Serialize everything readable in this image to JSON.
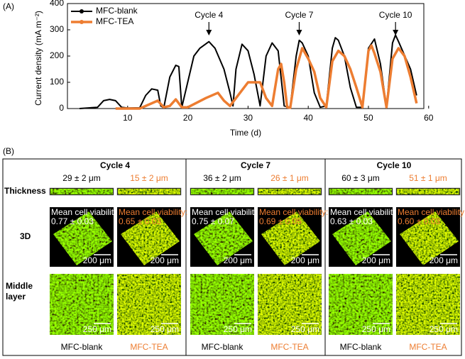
{
  "chart_data": {
    "type": "line",
    "panel_label": "(A)",
    "xlabel": "Time (d)",
    "ylabel": "Current density (mA m⁻²)",
    "xlim": [
      0,
      59.2
    ],
    "xticks": [
      10,
      20,
      30,
      40,
      50,
      60
    ],
    "ylim": [
      0,
      400
    ],
    "yticks": [
      0,
      100,
      200,
      300,
      400
    ],
    "legend": "upper left",
    "series": [
      {
        "name": "MFC-blank",
        "color": "#000000",
        "x": [
          2,
          5,
          6,
          7,
          8,
          9,
          10,
          12,
          13,
          14,
          15,
          15.5,
          16,
          17,
          18,
          18.5,
          19,
          21,
          22,
          23.5,
          24.5,
          26,
          27,
          27.5,
          28,
          29,
          30,
          31,
          32,
          33,
          34,
          35,
          36,
          37,
          38,
          38.5,
          39,
          40,
          41,
          42,
          43,
          44,
          44.5,
          45,
          46,
          47,
          48,
          49,
          50,
          51,
          52,
          53,
          54,
          54.5,
          55,
          57,
          58
        ],
        "values": [
          0,
          5,
          30,
          35,
          30,
          5,
          2,
          3,
          50,
          75,
          70,
          10,
          3,
          120,
          165,
          160,
          5,
          200,
          230,
          255,
          230,
          150,
          60,
          10,
          150,
          245,
          220,
          130,
          10,
          200,
          250,
          220,
          10,
          5,
          200,
          260,
          250,
          200,
          60,
          5,
          10,
          230,
          270,
          260,
          200,
          80,
          5,
          5,
          230,
          265,
          170,
          5,
          250,
          280,
          255,
          150,
          50
        ]
      },
      {
        "name": "MFC-TEA",
        "color": "#ed7d31",
        "x": [
          8,
          12,
          14,
          15,
          16,
          17,
          18,
          19,
          20,
          23,
          25,
          26,
          27,
          30,
          32,
          33,
          34,
          35,
          35.5,
          36,
          36.5,
          37,
          38,
          39,
          40,
          41,
          42,
          43,
          44,
          45,
          46,
          47,
          48,
          49,
          50,
          50.5,
          51,
          52,
          53,
          54,
          55,
          56,
          57,
          58
        ],
        "values": [
          0,
          0,
          20,
          30,
          5,
          10,
          35,
          5,
          5,
          40,
          60,
          30,
          10,
          100,
          100,
          40,
          10,
          150,
          170,
          100,
          5,
          3,
          150,
          230,
          190,
          140,
          40,
          5,
          180,
          220,
          200,
          150,
          80,
          5,
          220,
          240,
          210,
          140,
          5,
          190,
          230,
          200,
          120,
          20
        ]
      }
    ],
    "annotations": [
      {
        "text": "Cycle 4",
        "x": 23.5
      },
      {
        "text": "Cycle 7",
        "x": 38.5
      },
      {
        "text": "Cycle 10",
        "x": 54.5
      }
    ]
  },
  "panel_b": {
    "label": "(B)",
    "row_labels": [
      "Thickness",
      "3D",
      "Middle layer"
    ],
    "groups": [
      {
        "title": "Cycle 4",
        "samples": [
          {
            "name": "MFC-blank",
            "thickness": "29 ± 2 μm",
            "viability_label": "Mean cell viability:",
            "viability": "0.77 ± 0.03",
            "scale_3d": "200 μm",
            "scale_middle": "250 μm"
          },
          {
            "name": "MFC-TEA",
            "thickness": "15 ± 2 μm",
            "viability_label": "Mean cell viability:",
            "viability": "0.65 ± 0.03",
            "scale_3d": "200 μm",
            "scale_middle": "250 μm"
          }
        ]
      },
      {
        "title": "Cycle 7",
        "samples": [
          {
            "name": "MFC-blank",
            "thickness": "36 ± 2 μm",
            "viability_label": "Mean cell viability:",
            "viability": "0.75 ± 0.07",
            "scale_3d": "200 μm",
            "scale_middle": "250 μm"
          },
          {
            "name": "MFC-TEA",
            "thickness": "26 ± 1 μm",
            "viability_label": "Mean cell viability:",
            "viability": "0.69 ± 0.05",
            "scale_3d": "200 μm",
            "scale_middle": "250 μm"
          }
        ]
      },
      {
        "title": "Cycle 10",
        "samples": [
          {
            "name": "MFC-blank",
            "thickness": "60 ± 3 μm",
            "viability_label": "Mean cell viability:",
            "viability": "0.63 ± 0.03",
            "scale_3d": "200 μm",
            "scale_middle": "250 μm"
          },
          {
            "name": "MFC-TEA",
            "thickness": "51 ± 1 μm",
            "viability_label": "Mean cell viability:",
            "viability": "0.60 ± 0.03",
            "scale_3d": "200 μm",
            "scale_middle": "250 μm"
          }
        ]
      }
    ]
  }
}
